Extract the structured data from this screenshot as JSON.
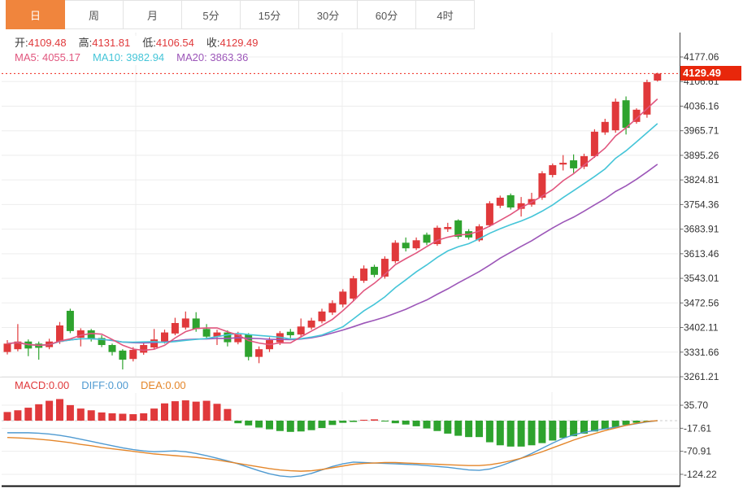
{
  "tabs": {
    "items": [
      {
        "label": "日",
        "active": true
      },
      {
        "label": "周",
        "active": false
      },
      {
        "label": "月",
        "active": false
      },
      {
        "label": "5分",
        "active": false
      },
      {
        "label": "15分",
        "active": false
      },
      {
        "label": "30分",
        "active": false
      },
      {
        "label": "60分",
        "active": false
      },
      {
        "label": "4时",
        "active": false
      }
    ]
  },
  "info": {
    "open_label": "开:",
    "open": "4109.48",
    "high_label": "高:",
    "high": "4131.81",
    "low_label": "低:",
    "low": "4106.54",
    "close_label": "收:",
    "close": "4129.49",
    "ma5_label": "MA5:",
    "ma5": "4055.17",
    "ma10_label": "MA10:",
    "ma10": "3982.94",
    "ma20_label": "MA20:",
    "ma20": "3863.36"
  },
  "macd_header": {
    "macd_label": "MACD:",
    "macd": "0.00",
    "diff_label": "DIFF:",
    "diff": "0.00",
    "dea_label": "DEA:",
    "dea": "0.00"
  },
  "price_axis": {
    "tag": "4129.49",
    "labels": [
      "4177.06",
      "4106.61",
      "4036.16",
      "3965.71",
      "3895.26",
      "3824.81",
      "3754.36",
      "3683.91",
      "3613.46",
      "3543.01",
      "3472.56",
      "3402.11",
      "3331.66",
      "3261.21"
    ]
  },
  "macd_axis": {
    "labels": [
      "35.70",
      "-17.61",
      "-70.91",
      "-124.22"
    ]
  },
  "colors": {
    "up": "#e0393b",
    "down": "#2ea32e",
    "ma5": "#e1567e",
    "ma10": "#45c5d8",
    "ma20": "#9c56b8",
    "diff": "#4f9ad1",
    "dea": "#e4862a",
    "tag_bg": "#e8270b",
    "active_tab": "#f0853d",
    "grid": "#ededed",
    "axis_text": "#333333",
    "dotted_last_price": "#f0251a"
  },
  "chart_data": {
    "type": "candlestick+macd",
    "title": "",
    "main": {
      "ylim": [
        3261.21,
        4177.06
      ],
      "yticks": [
        4177.06,
        4106.61,
        4036.16,
        3965.71,
        3895.26,
        3824.81,
        3754.36,
        3683.91,
        3613.46,
        3543.01,
        3472.56,
        3402.11,
        3331.66,
        3261.21
      ],
      "last_price": 4129.49,
      "ohlc_current": {
        "open": 4109.48,
        "high": 4131.81,
        "low": 4106.54,
        "close": 4129.49
      },
      "ma_periods": [
        5,
        10,
        20
      ],
      "ma_current": {
        "ma5": 4055.17,
        "ma10": 3982.94,
        "ma20": 3863.36
      },
      "candles": [
        [
          3332,
          3366,
          3325,
          3356
        ],
        [
          3340,
          3412,
          3334,
          3362
        ],
        [
          3362,
          3368,
          3320,
          3342
        ],
        [
          3356,
          3362,
          3310,
          3344
        ],
        [
          3346,
          3370,
          3340,
          3362
        ],
        [
          3361,
          3418,
          3355,
          3408
        ],
        [
          3450,
          3456,
          3386,
          3392
        ],
        [
          3373,
          3400,
          3348,
          3394
        ],
        [
          3394,
          3398,
          3362,
          3370
        ],
        [
          3372,
          3380,
          3346,
          3352
        ],
        [
          3352,
          3356,
          3322,
          3332
        ],
        [
          3336,
          3340,
          3282,
          3310
        ],
        [
          3312,
          3346,
          3305,
          3338
        ],
        [
          3330,
          3360,
          3324,
          3352
        ],
        [
          3345,
          3398,
          3340,
          3368
        ],
        [
          3362,
          3396,
          3356,
          3388
        ],
        [
          3385,
          3430,
          3380,
          3415
        ],
        [
          3402,
          3448,
          3396,
          3428
        ],
        [
          3428,
          3446,
          3390,
          3398
        ],
        [
          3398,
          3412,
          3368,
          3376
        ],
        [
          3376,
          3396,
          3352,
          3388
        ],
        [
          3388,
          3394,
          3348,
          3360
        ],
        [
          3360,
          3390,
          3354,
          3382
        ],
        [
          3382,
          3386,
          3308,
          3318
        ],
        [
          3318,
          3348,
          3300,
          3340
        ],
        [
          3340,
          3374,
          3332,
          3366
        ],
        [
          3360,
          3392,
          3352,
          3386
        ],
        [
          3390,
          3398,
          3372,
          3380
        ],
        [
          3382,
          3428,
          3376,
          3405
        ],
        [
          3402,
          3430,
          3396,
          3422
        ],
        [
          3420,
          3456,
          3414,
          3448
        ],
        [
          3445,
          3480,
          3438,
          3472
        ],
        [
          3468,
          3512,
          3460,
          3505
        ],
        [
          3485,
          3550,
          3478,
          3543
        ],
        [
          3536,
          3580,
          3530,
          3571
        ],
        [
          3576,
          3582,
          3546,
          3553
        ],
        [
          3548,
          3606,
          3542,
          3599
        ],
        [
          3592,
          3652,
          3586,
          3645
        ],
        [
          3645,
          3660,
          3620,
          3629
        ],
        [
          3629,
          3660,
          3624,
          3652
        ],
        [
          3668,
          3674,
          3638,
          3645
        ],
        [
          3641,
          3694,
          3636,
          3688
        ],
        [
          3684,
          3702,
          3676,
          3690
        ],
        [
          3709,
          3712,
          3656,
          3662
        ],
        [
          3678,
          3684,
          3654,
          3660
        ],
        [
          3652,
          3698,
          3648,
          3692
        ],
        [
          3695,
          3764,
          3690,
          3758
        ],
        [
          3751,
          3780,
          3744,
          3774
        ],
        [
          3781,
          3786,
          3740,
          3746
        ],
        [
          3742,
          3776,
          3720,
          3758
        ],
        [
          3754,
          3788,
          3748,
          3770
        ],
        [
          3774,
          3850,
          3768,
          3844
        ],
        [
          3839,
          3872,
          3832,
          3867
        ],
        [
          3869,
          3896,
          3852,
          3874
        ],
        [
          3881,
          3898,
          3845,
          3858
        ],
        [
          3863,
          3900,
          3856,
          3893
        ],
        [
          3893,
          3970,
          3888,
          3963
        ],
        [
          3961,
          4000,
          3954,
          3991
        ],
        [
          3967,
          4058,
          3960,
          4049
        ],
        [
          4053,
          4064,
          3955,
          3974
        ],
        [
          3991,
          4030,
          3986,
          4026
        ],
        [
          4012,
          4112,
          4003,
          4105
        ],
        [
          4109.48,
          4131.81,
          4106.54,
          4129.49
        ]
      ]
    },
    "macd": {
      "ylim": [
        -137,
        50
      ],
      "yticks": [
        35.7,
        -17.61,
        -70.91,
        -124.22
      ],
      "current": {
        "macd": 0.0,
        "diff": 0.0,
        "dea": 0.0
      },
      "histogram": [
        20,
        24,
        30,
        38,
        46,
        50,
        36,
        28,
        24,
        19,
        17,
        16,
        15,
        17,
        28,
        40,
        45,
        47,
        44,
        46,
        39,
        27,
        -6,
        -11,
        -16,
        -20,
        -24,
        -26,
        -25,
        -22,
        -17,
        -10,
        -5,
        -3,
        2,
        3,
        -2,
        -6,
        -9,
        -13,
        -18,
        -24,
        -30,
        -35,
        -38,
        -38,
        -50,
        -57,
        -60,
        -60,
        -57,
        -52,
        -46,
        -40,
        -36,
        -30,
        -25,
        -20,
        -15,
        -10,
        -5,
        -2,
        0
      ],
      "diff": [
        -28,
        -28,
        -28,
        -29,
        -31,
        -34,
        -38,
        -43,
        -48,
        -53,
        -58,
        -63,
        -67,
        -70,
        -72,
        -71,
        -70,
        -72,
        -76,
        -81,
        -87,
        -93,
        -100,
        -108,
        -116,
        -123,
        -128,
        -130,
        -128,
        -122,
        -114,
        -106,
        -100,
        -96,
        -97,
        -98,
        -99,
        -100,
        -101,
        -102,
        -104,
        -106,
        -108,
        -111,
        -114,
        -115,
        -112,
        -105,
        -96,
        -87,
        -76,
        -64,
        -52,
        -41,
        -33,
        -27,
        -23,
        -19,
        -15,
        -11,
        -7,
        -3,
        0
      ],
      "dea": [
        -39,
        -40,
        -41,
        -43,
        -45,
        -48,
        -51,
        -55,
        -58,
        -62,
        -65,
        -68,
        -71,
        -74,
        -77,
        -79,
        -81,
        -83,
        -85,
        -88,
        -91,
        -95,
        -99,
        -103,
        -107,
        -111,
        -114,
        -116,
        -117,
        -116,
        -113,
        -109,
        -105,
        -101,
        -99,
        -98,
        -97,
        -97,
        -98,
        -99,
        -100,
        -101,
        -102,
        -103,
        -104,
        -104,
        -102,
        -98,
        -93,
        -87,
        -80,
        -72,
        -63,
        -54,
        -45,
        -37,
        -30,
        -23,
        -17,
        -11,
        -6,
        -2,
        0
      ]
    },
    "layout": {
      "grid": true,
      "vertical_grid_x": [
        167,
        421,
        679
      ],
      "legend_position": "top-left-overlay"
    }
  }
}
